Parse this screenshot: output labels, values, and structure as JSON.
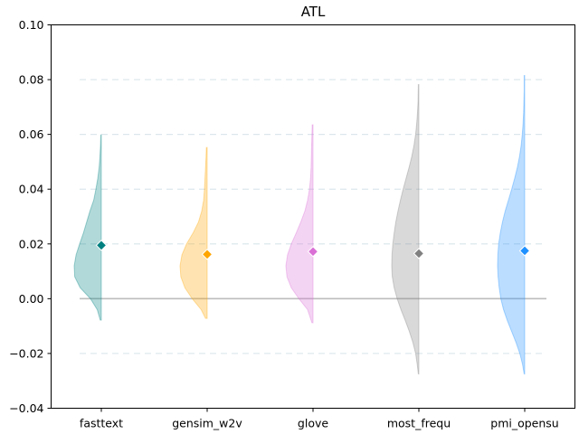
{
  "chart_data": {
    "type": "violin",
    "title": "ATL",
    "xlabel": "",
    "ylabel": "",
    "ylim": [
      -0.04,
      0.1
    ],
    "yticks": [
      -0.04,
      -0.02,
      0.0,
      0.02,
      0.04,
      0.06,
      0.08,
      0.1
    ],
    "ytick_labels": [
      "−0.04",
      "−0.02",
      "0.00",
      "0.02",
      "0.04",
      "0.06",
      "0.08",
      "0.10"
    ],
    "grid": "horizontal dashed",
    "reference_line_y": 0.0,
    "categories": [
      "fasttext",
      "gensim_w2v",
      "glove",
      "most_frequ",
      "pmi_opensu"
    ],
    "series": [
      {
        "category": "fasttext",
        "color": "#008080",
        "mean": 0.0195,
        "min": -0.0078,
        "max": 0.0598,
        "density": [
          [
            -0.0078,
            0.04
          ],
          [
            -0.004,
            0.15
          ],
          [
            0.0,
            0.4
          ],
          [
            0.004,
            0.78
          ],
          [
            0.008,
            0.98
          ],
          [
            0.012,
            1.0
          ],
          [
            0.016,
            0.93
          ],
          [
            0.02,
            0.8
          ],
          [
            0.024,
            0.66
          ],
          [
            0.028,
            0.54
          ],
          [
            0.032,
            0.42
          ],
          [
            0.036,
            0.28
          ],
          [
            0.04,
            0.2
          ],
          [
            0.044,
            0.13
          ],
          [
            0.048,
            0.08
          ],
          [
            0.052,
            0.05
          ],
          [
            0.056,
            0.03
          ],
          [
            0.0598,
            0.02
          ]
        ]
      },
      {
        "category": "gensim_w2v",
        "color": "#FFA500",
        "mean": 0.0162,
        "min": -0.0072,
        "max": 0.0552,
        "density": [
          [
            -0.0072,
            0.06
          ],
          [
            -0.004,
            0.22
          ],
          [
            0.0,
            0.55
          ],
          [
            0.004,
            0.82
          ],
          [
            0.008,
            0.97
          ],
          [
            0.012,
            1.0
          ],
          [
            0.016,
            0.93
          ],
          [
            0.02,
            0.76
          ],
          [
            0.024,
            0.52
          ],
          [
            0.028,
            0.32
          ],
          [
            0.032,
            0.2
          ],
          [
            0.036,
            0.13
          ],
          [
            0.04,
            0.1
          ],
          [
            0.044,
            0.08
          ],
          [
            0.048,
            0.06
          ],
          [
            0.052,
            0.04
          ],
          [
            0.0552,
            0.03
          ]
        ]
      },
      {
        "category": "glove",
        "color": "#DA70D6",
        "mean": 0.0172,
        "min": -0.0088,
        "max": 0.0635,
        "density": [
          [
            -0.0088,
            0.04
          ],
          [
            -0.004,
            0.2
          ],
          [
            0.0,
            0.52
          ],
          [
            0.004,
            0.8
          ],
          [
            0.008,
            0.96
          ],
          [
            0.012,
            1.0
          ],
          [
            0.016,
            0.94
          ],
          [
            0.02,
            0.8
          ],
          [
            0.024,
            0.62
          ],
          [
            0.028,
            0.45
          ],
          [
            0.032,
            0.3
          ],
          [
            0.036,
            0.2
          ],
          [
            0.04,
            0.13
          ],
          [
            0.044,
            0.09
          ],
          [
            0.048,
            0.07
          ],
          [
            0.052,
            0.06
          ],
          [
            0.056,
            0.05
          ],
          [
            0.06,
            0.04
          ],
          [
            0.0635,
            0.03
          ]
        ]
      },
      {
        "category": "most_frequ",
        "color": "#808080",
        "mean": 0.0165,
        "min": -0.0275,
        "max": 0.0782,
        "density": [
          [
            -0.0275,
            0.02
          ],
          [
            -0.024,
            0.06
          ],
          [
            -0.02,
            0.12
          ],
          [
            -0.016,
            0.22
          ],
          [
            -0.012,
            0.35
          ],
          [
            -0.008,
            0.5
          ],
          [
            -0.004,
            0.66
          ],
          [
            0.0,
            0.8
          ],
          [
            0.004,
            0.91
          ],
          [
            0.008,
            0.98
          ],
          [
            0.012,
            1.0
          ],
          [
            0.016,
            0.99
          ],
          [
            0.02,
            0.96
          ],
          [
            0.024,
            0.91
          ],
          [
            0.028,
            0.85
          ],
          [
            0.032,
            0.77
          ],
          [
            0.036,
            0.68
          ],
          [
            0.04,
            0.58
          ],
          [
            0.044,
            0.47
          ],
          [
            0.048,
            0.36
          ],
          [
            0.052,
            0.26
          ],
          [
            0.056,
            0.18
          ],
          [
            0.06,
            0.12
          ],
          [
            0.064,
            0.08
          ],
          [
            0.068,
            0.05
          ],
          [
            0.072,
            0.03
          ],
          [
            0.0782,
            0.02
          ]
        ]
      },
      {
        "category": "pmi_opensu",
        "color": "#1E90FF",
        "mean": 0.0175,
        "min": -0.0275,
        "max": 0.0815,
        "density": [
          [
            -0.0275,
            0.02
          ],
          [
            -0.024,
            0.08
          ],
          [
            -0.02,
            0.18
          ],
          [
            -0.016,
            0.32
          ],
          [
            -0.012,
            0.48
          ],
          [
            -0.008,
            0.64
          ],
          [
            -0.004,
            0.78
          ],
          [
            0.0,
            0.88
          ],
          [
            0.004,
            0.94
          ],
          [
            0.008,
            0.98
          ],
          [
            0.012,
            1.0
          ],
          [
            0.016,
            0.99
          ],
          [
            0.02,
            0.96
          ],
          [
            0.024,
            0.9
          ],
          [
            0.028,
            0.82
          ],
          [
            0.032,
            0.72
          ],
          [
            0.036,
            0.6
          ],
          [
            0.04,
            0.48
          ],
          [
            0.044,
            0.37
          ],
          [
            0.048,
            0.27
          ],
          [
            0.052,
            0.19
          ],
          [
            0.056,
            0.13
          ],
          [
            0.06,
            0.09
          ],
          [
            0.064,
            0.06
          ],
          [
            0.068,
            0.04
          ],
          [
            0.072,
            0.03
          ],
          [
            0.076,
            0.02
          ],
          [
            0.0815,
            0.02
          ]
        ]
      }
    ]
  }
}
